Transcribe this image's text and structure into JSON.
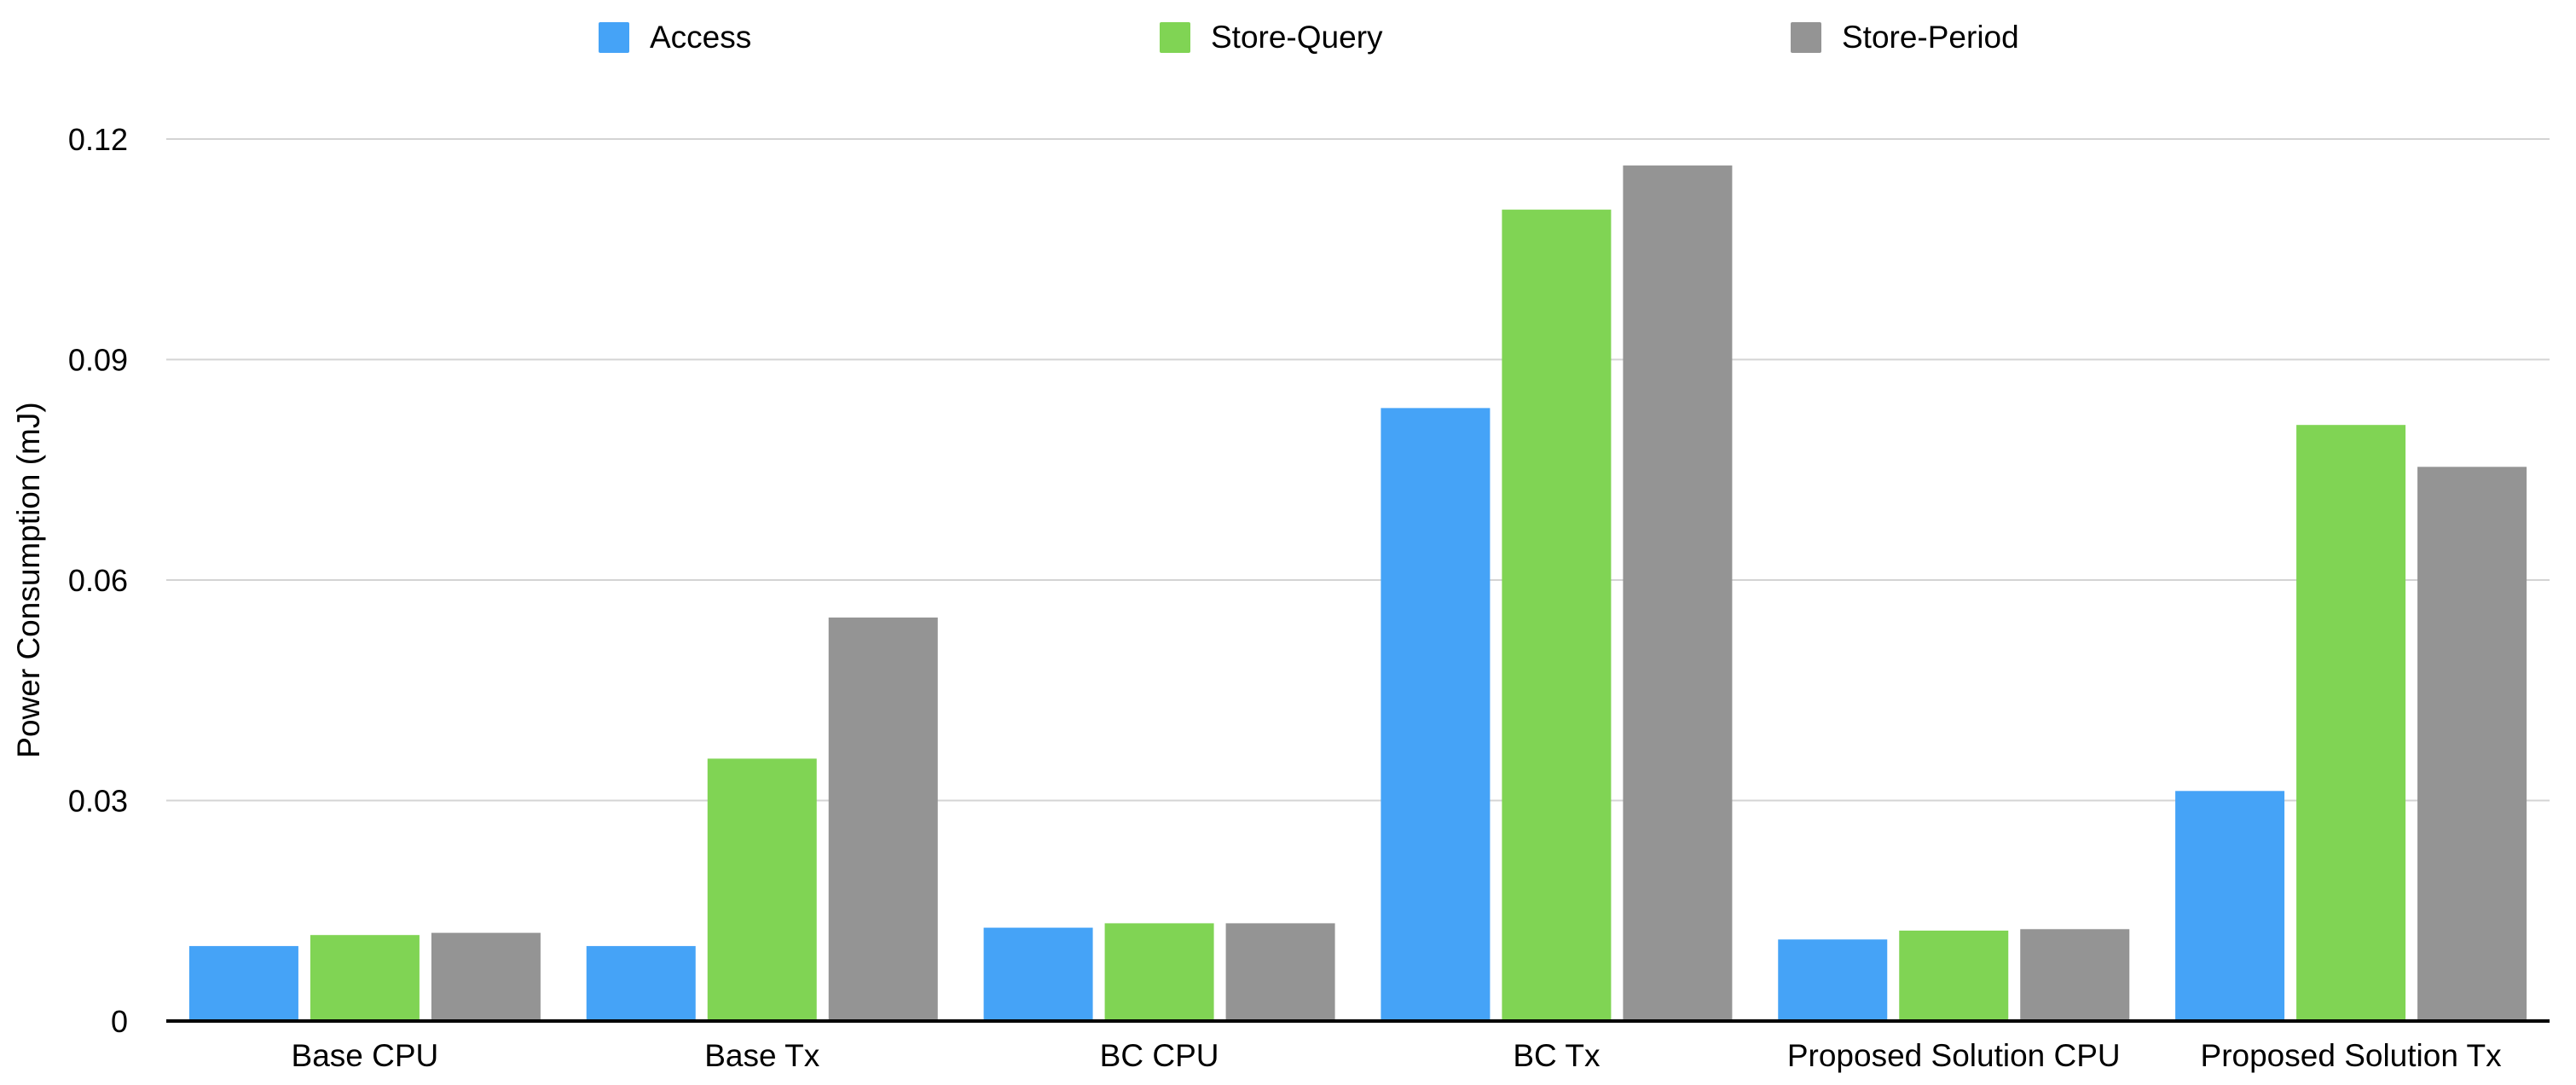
{
  "chart_data": {
    "type": "bar",
    "title": "",
    "xlabel": "",
    "ylabel": "Power Consumption (mJ)",
    "ylim": [
      0,
      0.12
    ],
    "yticks": [
      "0",
      "0.03",
      "0.06",
      "0.09",
      "0.12"
    ],
    "ytick_values": [
      0,
      0.03,
      0.06,
      0.09,
      0.12
    ],
    "grid": true,
    "legend_position": "top",
    "categories": [
      "Base CPU",
      "Base Tx",
      "BC CPU",
      "BC Tx",
      "Proposed Solution CPU",
      "Proposed Solution Tx"
    ],
    "series": [
      {
        "name": "Access",
        "color": "#45A3F7",
        "values": [
          0.0102,
          0.0102,
          0.0127,
          0.0834,
          0.0111,
          0.0313
        ]
      },
      {
        "name": "Store-Query",
        "color": "#80D454",
        "values": [
          0.0117,
          0.0357,
          0.0133,
          0.1104,
          0.0123,
          0.0811
        ]
      },
      {
        "name": "Store-Period",
        "color": "#949494",
        "values": [
          0.012,
          0.0549,
          0.0133,
          0.1164,
          0.0125,
          0.0754
        ]
      }
    ]
  }
}
